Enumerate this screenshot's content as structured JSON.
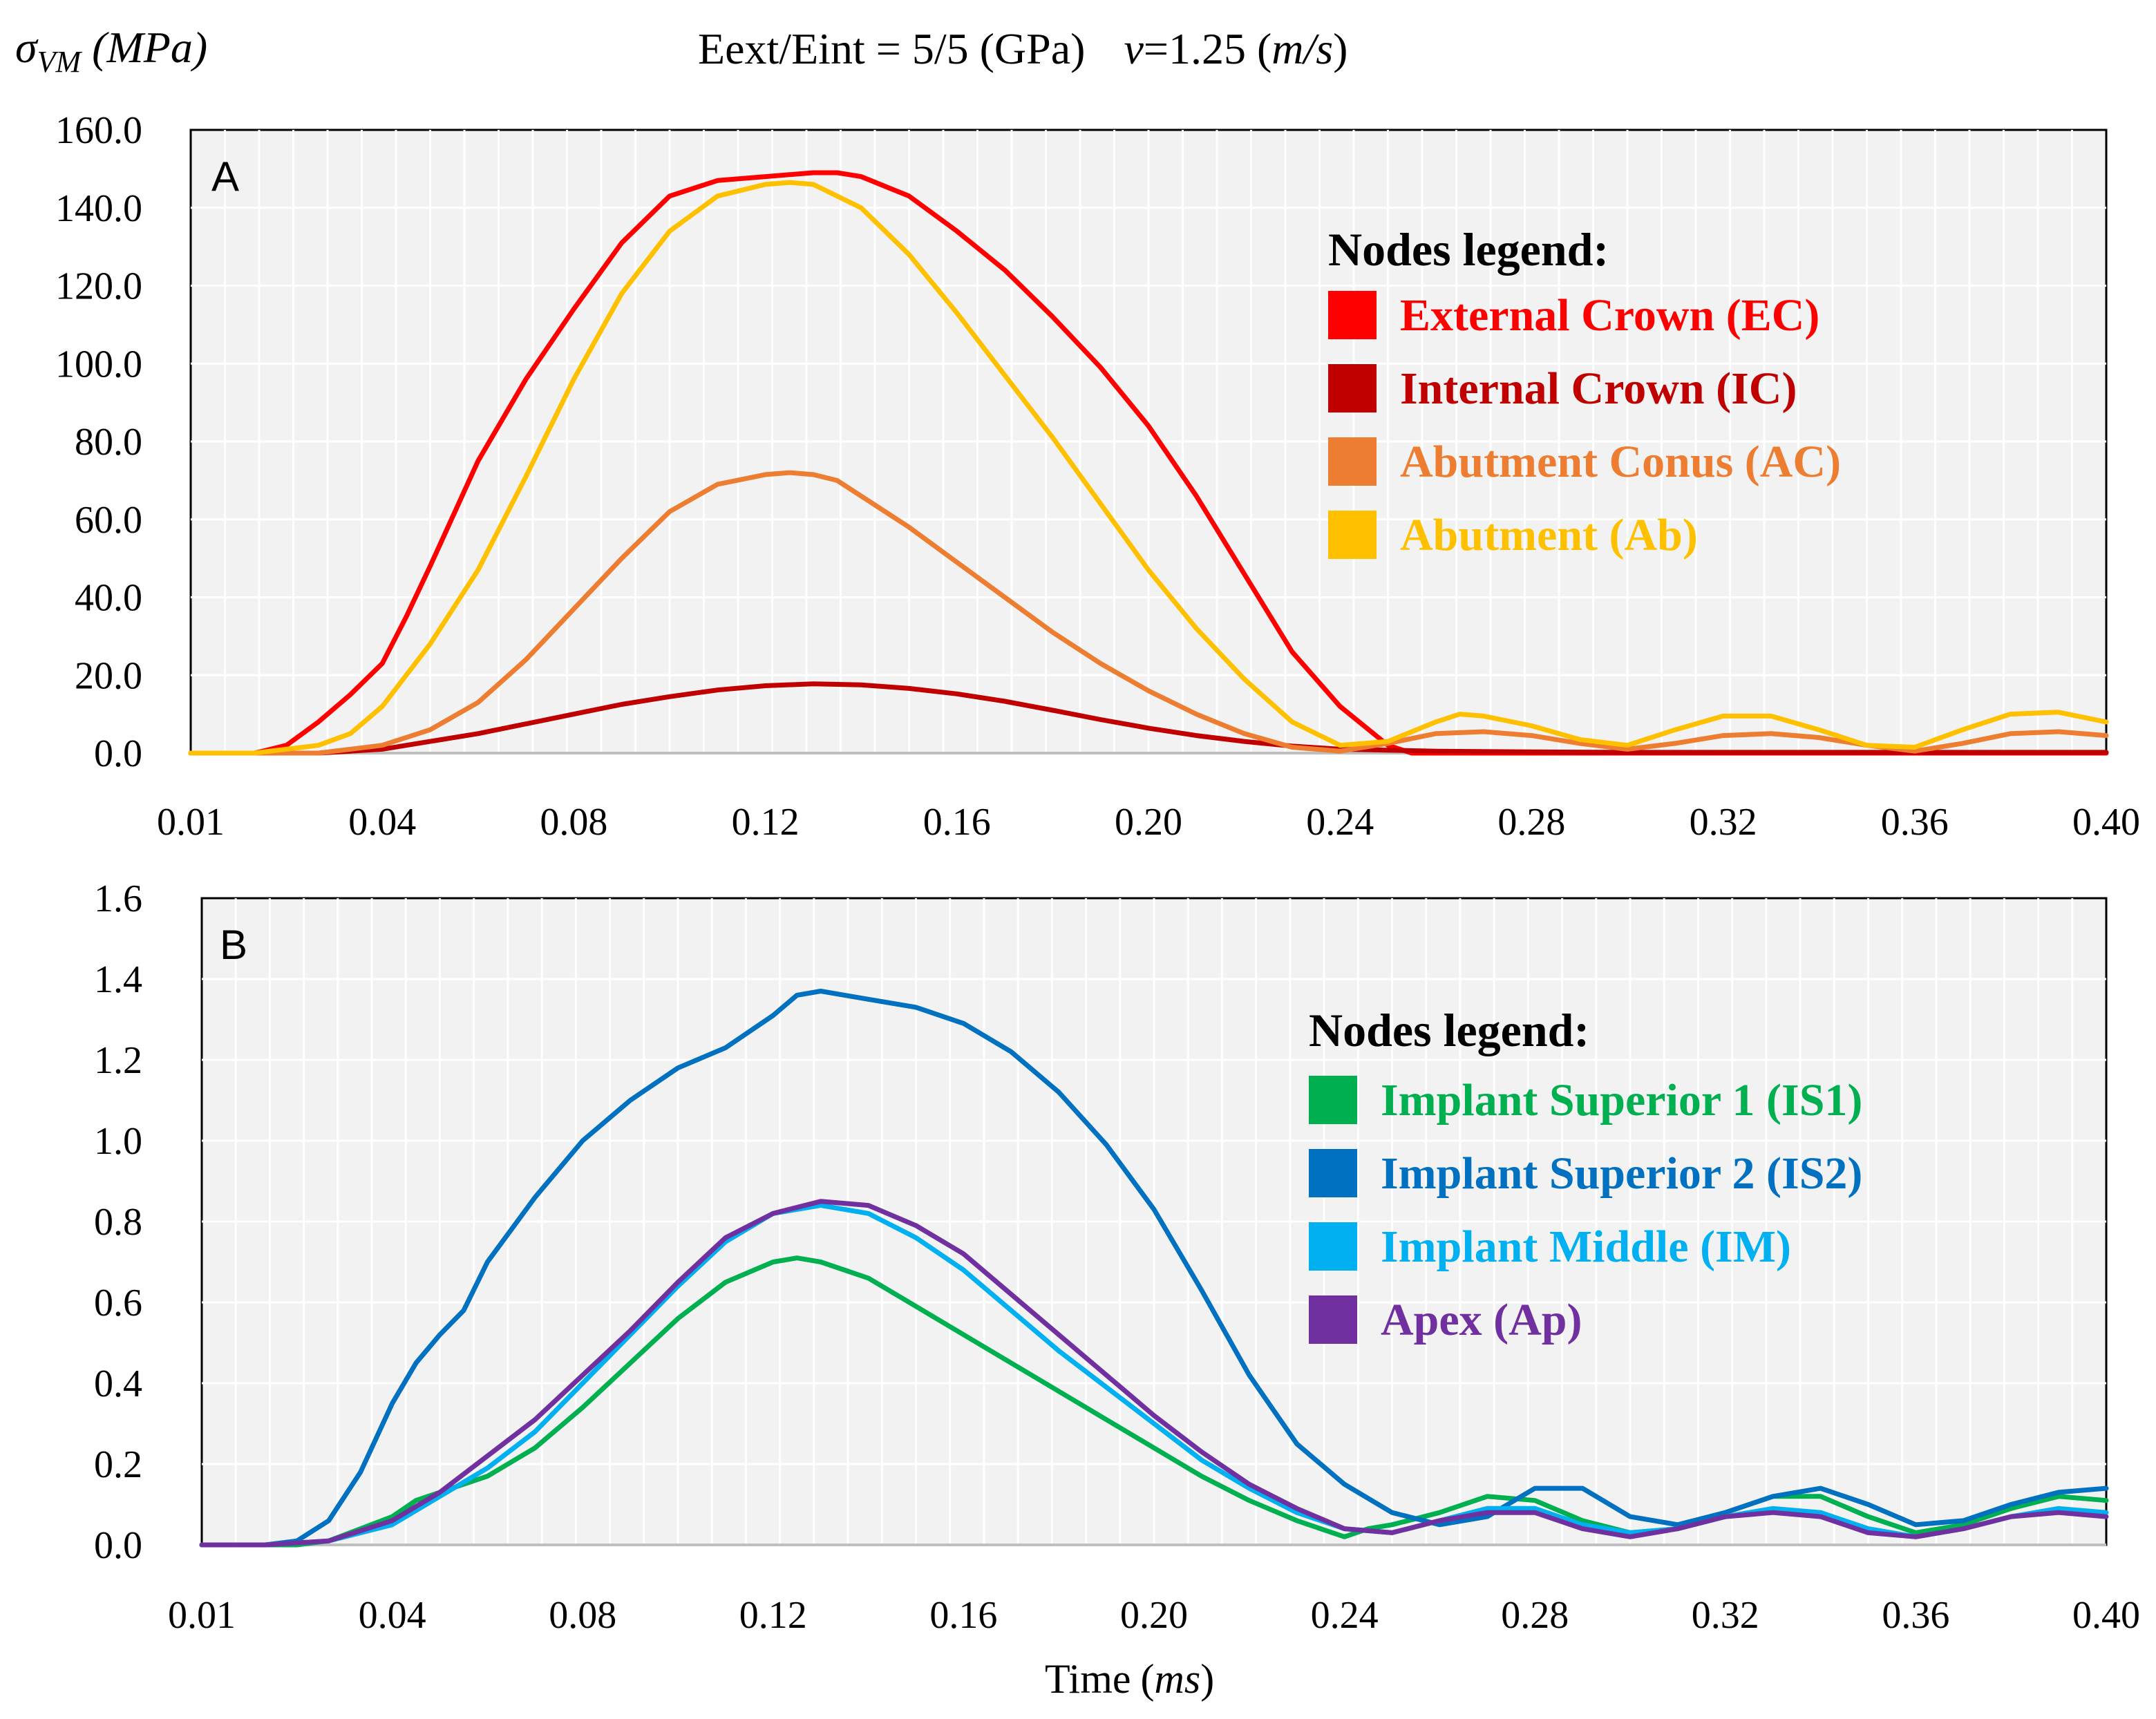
{
  "header": {
    "ylabel_symbol": "σ",
    "ylabel_sub": "VM",
    "ylabel_unit": "(MPa)",
    "title_main": "Eext/Eint = 5/5 (GPa)",
    "title_v": "v",
    "title_value": "=1.25 (",
    "title_unit": "m/s",
    "title_close": ")"
  },
  "chart_data": [
    {
      "type": "line",
      "panel": "A",
      "ylim": [
        0,
        160
      ],
      "yticks": [
        "0.0",
        "20.0",
        "40.0",
        "60.0",
        "80.0",
        "100.0",
        "120.0",
        "140.0",
        "160.0"
      ],
      "xlim": [
        0.01,
        0.4
      ],
      "xticks": [
        "0.01",
        "0.04",
        "0.08",
        "0.12",
        "0.16",
        "0.20",
        "0.24",
        "0.28",
        "0.32",
        "0.36",
        "0.40"
      ],
      "grid": true,
      "legend_title": "Nodes legend:",
      "legend_position": "right",
      "series": [
        {
          "name": "External Crown (EC)",
          "color": "#ff0000",
          "x": [
            0.01,
            0.02,
            0.025,
            0.03,
            0.035,
            0.04,
            0.045,
            0.05,
            0.06,
            0.07,
            0.08,
            0.09,
            0.1,
            0.11,
            0.12,
            0.13,
            0.135,
            0.14,
            0.15,
            0.16,
            0.17,
            0.18,
            0.19,
            0.2,
            0.21,
            0.22,
            0.23,
            0.24,
            0.25,
            0.255,
            0.26,
            0.28,
            0.3,
            0.32,
            0.34,
            0.36,
            0.38,
            0.4
          ],
          "y": [
            0,
            0,
            2,
            8,
            15,
            23,
            35,
            48,
            75,
            96,
            114,
            131,
            143,
            147,
            148,
            149,
            149,
            148,
            143,
            134,
            124,
            112,
            99,
            84,
            66,
            46,
            26,
            12,
            2,
            0,
            0,
            0,
            0,
            0,
            0,
            0,
            0,
            0
          ]
        },
        {
          "name": "Internal Crown (IC)",
          "color": "#c00000",
          "x": [
            0.01,
            0.02,
            0.03,
            0.04,
            0.05,
            0.06,
            0.07,
            0.08,
            0.09,
            0.1,
            0.11,
            0.12,
            0.13,
            0.14,
            0.15,
            0.16,
            0.17,
            0.18,
            0.19,
            0.2,
            0.21,
            0.22,
            0.23,
            0.24,
            0.26,
            0.28,
            0.3,
            0.32,
            0.34,
            0.36,
            0.38,
            0.4
          ],
          "y": [
            0,
            0,
            0,
            1,
            3,
            5,
            7.5,
            10,
            12.5,
            14.5,
            16.2,
            17.3,
            17.8,
            17.5,
            16.6,
            15.2,
            13.3,
            11.0,
            8.6,
            6.4,
            4.5,
            3.0,
            1.8,
            1.0,
            0.5,
            0.3,
            0.2,
            0.2,
            0.2,
            0.2,
            0.2,
            0.2
          ]
        },
        {
          "name": "Abutment Conus (AC)",
          "color": "#ed7d31",
          "x": [
            0.01,
            0.02,
            0.03,
            0.04,
            0.05,
            0.06,
            0.07,
            0.08,
            0.09,
            0.1,
            0.11,
            0.12,
            0.125,
            0.13,
            0.135,
            0.14,
            0.15,
            0.16,
            0.17,
            0.18,
            0.19,
            0.2,
            0.21,
            0.22,
            0.23,
            0.24,
            0.25,
            0.26,
            0.27,
            0.28,
            0.29,
            0.3,
            0.31,
            0.32,
            0.33,
            0.34,
            0.35,
            0.36,
            0.37,
            0.38,
            0.39,
            0.4
          ],
          "y": [
            0,
            0,
            0,
            2,
            6,
            13,
            24,
            37,
            50,
            62,
            69,
            71.5,
            72,
            71.5,
            70,
            66,
            58,
            49,
            40,
            31,
            23,
            16,
            10,
            5,
            1.5,
            0.5,
            2.5,
            5,
            5.5,
            4.5,
            2.5,
            1.0,
            2.5,
            4.5,
            5,
            4,
            2,
            0.5,
            2.5,
            5,
            5.5,
            4.5
          ]
        },
        {
          "name": "Abutment (Ab)",
          "color": "#ffc000",
          "x": [
            0.01,
            0.02,
            0.03,
            0.035,
            0.04,
            0.05,
            0.06,
            0.07,
            0.08,
            0.09,
            0.1,
            0.11,
            0.12,
            0.125,
            0.13,
            0.14,
            0.15,
            0.16,
            0.17,
            0.18,
            0.19,
            0.2,
            0.21,
            0.22,
            0.23,
            0.24,
            0.25,
            0.26,
            0.265,
            0.27,
            0.28,
            0.29,
            0.3,
            0.31,
            0.32,
            0.33,
            0.34,
            0.35,
            0.36,
            0.37,
            0.38,
            0.39,
            0.4
          ],
          "y": [
            0,
            0,
            2,
            5,
            12,
            28,
            47,
            71,
            96,
            118,
            134,
            143,
            146,
            146.5,
            146,
            140,
            128,
            113,
            97,
            81,
            64,
            47,
            32,
            19,
            8,
            2,
            3,
            8,
            10,
            9.5,
            7,
            3.5,
            2,
            6,
            9.5,
            9.5,
            6,
            2,
            1.5,
            6,
            10,
            10.5,
            8
          ]
        }
      ]
    },
    {
      "type": "line",
      "panel": "B",
      "xlabel": "Time",
      "xlabel_unit": "ms",
      "ylim": [
        0,
        1.6
      ],
      "yticks": [
        "0.0",
        "0.2",
        "0.4",
        "0.6",
        "0.8",
        "1.0",
        "1.2",
        "1.4",
        "1.6"
      ],
      "xlim": [
        0.01,
        0.4
      ],
      "xticks": [
        "0.01",
        "0.04",
        "0.08",
        "0.12",
        "0.16",
        "0.20",
        "0.24",
        "0.28",
        "0.32",
        "0.36",
        "0.40"
      ],
      "grid": true,
      "legend_title": "Nodes legend:",
      "legend_position": "right",
      "series": [
        {
          "name": "Implant Superior 1 (IS1)",
          "color": "#00b050",
          "x": [
            0.01,
            0.02,
            0.025,
            0.03,
            0.035,
            0.04,
            0.045,
            0.05,
            0.06,
            0.07,
            0.08,
            0.09,
            0.1,
            0.11,
            0.12,
            0.125,
            0.13,
            0.14,
            0.15,
            0.16,
            0.17,
            0.18,
            0.19,
            0.2,
            0.21,
            0.22,
            0.23,
            0.24,
            0.245,
            0.25,
            0.26,
            0.27,
            0.28,
            0.29,
            0.3,
            0.31,
            0.32,
            0.33,
            0.34,
            0.35,
            0.36,
            0.37,
            0.38,
            0.39,
            0.4
          ],
          "y": [
            0,
            0,
            0,
            0.01,
            0.04,
            0.07,
            0.11,
            0.13,
            0.17,
            0.24,
            0.34,
            0.45,
            0.56,
            0.65,
            0.7,
            0.71,
            0.7,
            0.66,
            0.59,
            0.52,
            0.45,
            0.38,
            0.31,
            0.24,
            0.17,
            0.11,
            0.06,
            0.02,
            0.04,
            0.05,
            0.08,
            0.12,
            0.11,
            0.06,
            0.03,
            0.04,
            0.08,
            0.12,
            0.12,
            0.07,
            0.03,
            0.05,
            0.09,
            0.12,
            0.11
          ]
        },
        {
          "name": "Implant Superior 2 (IS2)",
          "color": "#0070c0",
          "x": [
            0.01,
            0.02,
            0.025,
            0.03,
            0.035,
            0.04,
            0.045,
            0.05,
            0.055,
            0.06,
            0.07,
            0.08,
            0.09,
            0.1,
            0.11,
            0.12,
            0.125,
            0.13,
            0.135,
            0.14,
            0.15,
            0.16,
            0.17,
            0.18,
            0.19,
            0.2,
            0.21,
            0.22,
            0.23,
            0.24,
            0.25,
            0.26,
            0.27,
            0.28,
            0.29,
            0.3,
            0.31,
            0.32,
            0.33,
            0.34,
            0.35,
            0.36,
            0.37,
            0.38,
            0.39,
            0.4
          ],
          "y": [
            0,
            0,
            0.01,
            0.06,
            0.18,
            0.35,
            0.45,
            0.52,
            0.58,
            0.7,
            0.86,
            1.0,
            1.1,
            1.18,
            1.23,
            1.31,
            1.36,
            1.37,
            1.36,
            1.35,
            1.33,
            1.29,
            1.22,
            1.12,
            0.99,
            0.83,
            0.63,
            0.42,
            0.25,
            0.15,
            0.08,
            0.05,
            0.07,
            0.14,
            0.14,
            0.07,
            0.05,
            0.08,
            0.12,
            0.14,
            0.1,
            0.05,
            0.06,
            0.1,
            0.13,
            0.14
          ]
        },
        {
          "name": "Implant Middle (IM)",
          "color": "#00b0f0",
          "x": [
            0.01,
            0.02,
            0.03,
            0.04,
            0.05,
            0.06,
            0.07,
            0.08,
            0.09,
            0.1,
            0.11,
            0.12,
            0.13,
            0.14,
            0.15,
            0.16,
            0.17,
            0.18,
            0.19,
            0.2,
            0.21,
            0.22,
            0.23,
            0.24,
            0.25,
            0.26,
            0.27,
            0.28,
            0.29,
            0.3,
            0.31,
            0.32,
            0.33,
            0.34,
            0.35,
            0.36,
            0.37,
            0.38,
            0.39,
            0.4
          ],
          "y": [
            0,
            0,
            0.01,
            0.05,
            0.12,
            0.19,
            0.28,
            0.4,
            0.52,
            0.64,
            0.75,
            0.82,
            0.84,
            0.82,
            0.76,
            0.68,
            0.58,
            0.48,
            0.39,
            0.3,
            0.21,
            0.14,
            0.08,
            0.04,
            0.03,
            0.06,
            0.09,
            0.09,
            0.05,
            0.03,
            0.04,
            0.07,
            0.09,
            0.08,
            0.04,
            0.02,
            0.04,
            0.07,
            0.09,
            0.08
          ]
        },
        {
          "name": "Apex (Ap)",
          "color": "#7030a0",
          "x": [
            0.01,
            0.02,
            0.03,
            0.04,
            0.05,
            0.06,
            0.07,
            0.08,
            0.09,
            0.1,
            0.11,
            0.12,
            0.13,
            0.14,
            0.15,
            0.16,
            0.17,
            0.18,
            0.19,
            0.2,
            0.21,
            0.22,
            0.23,
            0.24,
            0.25,
            0.26,
            0.27,
            0.28,
            0.29,
            0.3,
            0.31,
            0.32,
            0.33,
            0.34,
            0.35,
            0.36,
            0.37,
            0.38,
            0.39,
            0.4
          ],
          "y": [
            0,
            0,
            0.01,
            0.06,
            0.13,
            0.22,
            0.31,
            0.42,
            0.53,
            0.65,
            0.76,
            0.82,
            0.85,
            0.84,
            0.79,
            0.72,
            0.62,
            0.52,
            0.42,
            0.32,
            0.23,
            0.15,
            0.09,
            0.04,
            0.03,
            0.06,
            0.08,
            0.08,
            0.04,
            0.02,
            0.04,
            0.07,
            0.08,
            0.07,
            0.03,
            0.02,
            0.04,
            0.07,
            0.08,
            0.07
          ]
        }
      ]
    }
  ]
}
